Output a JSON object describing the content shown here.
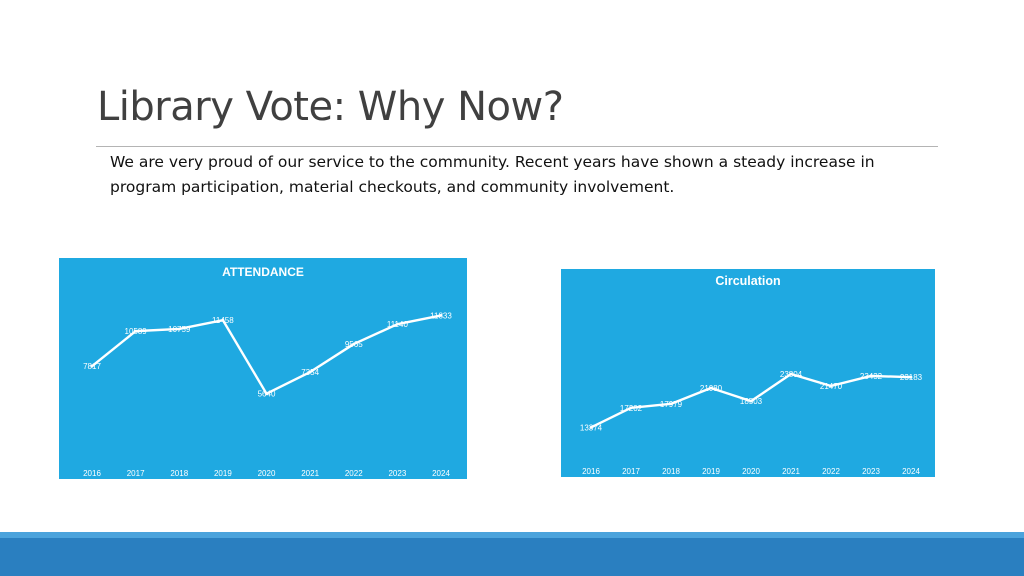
{
  "slide": {
    "title": "Library Vote: Why Now?",
    "body": "We are very proud of our service to the community. Recent years have shown a steady increase in program participation, material checkouts, and community involvement."
  },
  "theme": {
    "chart_background": "#1fa9e1",
    "line_color": "#ffffff",
    "footer_light": "#4ba3dc",
    "footer_dark": "#2a7fc0",
    "title_color": "#404040"
  },
  "chart_data": [
    {
      "type": "line",
      "title": "ATTENDANCE",
      "categories": [
        "2016",
        "2017",
        "2018",
        "2019",
        "2020",
        "2021",
        "2022",
        "2023",
        "2024"
      ],
      "values": [
        7817,
        10589,
        10759,
        11458,
        5640,
        7354,
        9565,
        11140,
        11833
      ],
      "ylim": [
        0,
        14000
      ],
      "grid": false,
      "data_labels": true
    },
    {
      "type": "line",
      "title": "Circulation",
      "categories": [
        "2016",
        "2017",
        "2018",
        "2019",
        "2020",
        "2021",
        "2022",
        "2023",
        "2024"
      ],
      "values": [
        13374,
        17202,
        17979,
        21080,
        18503,
        23804,
        21470,
        23432,
        23183
      ],
      "ylim": [
        0,
        40000
      ],
      "grid": false,
      "data_labels": true
    }
  ]
}
